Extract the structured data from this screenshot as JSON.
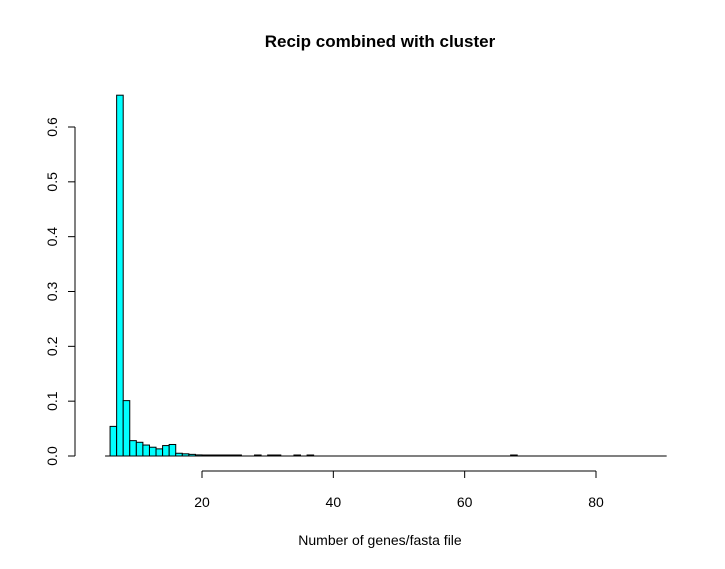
{
  "chart_data": {
    "type": "bar",
    "title": "Recip combined with cluster",
    "xlabel": "Number of genes/fasta file",
    "ylabel": "",
    "bar_color": "#00ffff",
    "bin_width": 1,
    "x_ticks": [
      20,
      40,
      60,
      80
    ],
    "x_tick_labels": [
      "20",
      "40",
      "60",
      "80"
    ],
    "y_ticks": [
      0.0,
      0.1,
      0.2,
      0.3,
      0.4,
      0.5,
      0.6
    ],
    "y_tick_labels": [
      "0.0",
      "0.1",
      "0.2",
      "0.3",
      "0.4",
      "0.5",
      "0.6"
    ],
    "xlim": [
      6,
      90
    ],
    "ylim": [
      0,
      0.66
    ],
    "bins": [
      {
        "x0": 6,
        "x1": 7,
        "value": 0.054
      },
      {
        "x0": 7,
        "x1": 8,
        "value": 0.658
      },
      {
        "x0": 8,
        "x1": 9,
        "value": 0.101
      },
      {
        "x0": 9,
        "x1": 10,
        "value": 0.028
      },
      {
        "x0": 10,
        "x1": 11,
        "value": 0.025
      },
      {
        "x0": 11,
        "x1": 12,
        "value": 0.02
      },
      {
        "x0": 12,
        "x1": 13,
        "value": 0.016
      },
      {
        "x0": 13,
        "x1": 14,
        "value": 0.013
      },
      {
        "x0": 14,
        "x1": 15,
        "value": 0.019
      },
      {
        "x0": 15,
        "x1": 16,
        "value": 0.021
      },
      {
        "x0": 16,
        "x1": 17,
        "value": 0.005
      },
      {
        "x0": 17,
        "x1": 18,
        "value": 0.004
      },
      {
        "x0": 18,
        "x1": 19,
        "value": 0.003
      },
      {
        "x0": 19,
        "x1": 20,
        "value": 0.002
      },
      {
        "x0": 20,
        "x1": 21,
        "value": 0.001
      },
      {
        "x0": 21,
        "x1": 22,
        "value": 0.001
      },
      {
        "x0": 22,
        "x1": 23,
        "value": 0.001
      },
      {
        "x0": 23,
        "x1": 24,
        "value": 0.001
      },
      {
        "x0": 24,
        "x1": 25,
        "value": 0.001
      },
      {
        "x0": 25,
        "x1": 26,
        "value": 0.001
      },
      {
        "x0": 28,
        "x1": 29,
        "value": 0.001
      },
      {
        "x0": 30,
        "x1": 31,
        "value": 0.001
      },
      {
        "x0": 31,
        "x1": 32,
        "value": 0.001
      },
      {
        "x0": 34,
        "x1": 35,
        "value": 0.001
      },
      {
        "x0": 36,
        "x1": 37,
        "value": 0.001
      },
      {
        "x0": 67,
        "x1": 68,
        "value": 0.001
      }
    ]
  }
}
